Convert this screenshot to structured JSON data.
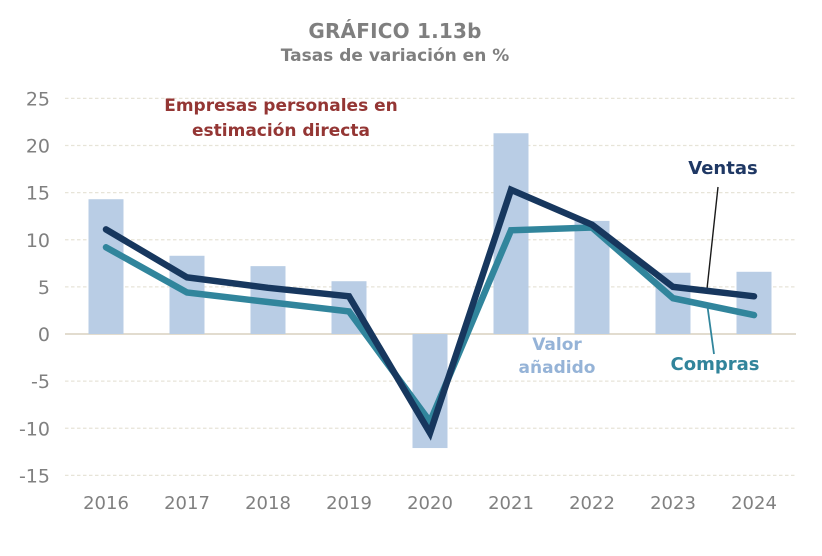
{
  "header": {
    "title": "GRÁFICO 1.13b",
    "subtitle": "Tasas de variación en %"
  },
  "labels": {
    "note": [
      "Empresas personales en",
      "estimación directa"
    ],
    "valor": [
      "Valor",
      "añadido"
    ],
    "ventas": "Ventas",
    "compras": "Compras"
  },
  "colors": {
    "title": "#7F7F7F",
    "axis_text": "#808080",
    "note": "#943634",
    "valor_label": "#95B3D7",
    "ventas_label": "#1F3864",
    "compras_label": "#31849B",
    "bar": "#B9CDE5",
    "ventas_line": "#17375E",
    "compras_line": "#31859C",
    "grid": "#E7E4D8",
    "zero_line": "#D8D1BF",
    "ventas_callout": "#1A1A1A",
    "compras_callout": "#31859C"
  },
  "chart_data": {
    "type": "bar",
    "title": "GRÁFICO 1.13b",
    "subtitle": "Tasas de variación en %",
    "annotation": "Empresas personales en estimación directa",
    "categories": [
      "2016",
      "2017",
      "2018",
      "2019",
      "2020",
      "2021",
      "2022",
      "2023",
      "2024"
    ],
    "series": [
      {
        "name": "Valor añadido",
        "type": "bar",
        "color": "#B9CDE5",
        "values": [
          14.3,
          8.3,
          7.2,
          5.6,
          -12.1,
          21.3,
          12.0,
          6.5,
          6.6
        ]
      },
      {
        "name": "Ventas",
        "type": "line",
        "color": "#17375E",
        "values": [
          11.1,
          6.0,
          4.9,
          4.0,
          -10.5,
          15.3,
          11.6,
          5.0,
          4.0
        ]
      },
      {
        "name": "Compras",
        "type": "line",
        "color": "#31859C",
        "values": [
          9.2,
          4.4,
          3.4,
          2.4,
          -9.3,
          11.0,
          11.3,
          3.8,
          2.0
        ]
      }
    ],
    "xlabel": "",
    "ylabel": "",
    "ylim": [
      -15,
      25
    ],
    "ytick_step": 5,
    "grid": "horizontal-dashed",
    "legend_position": "inline-annotations"
  }
}
